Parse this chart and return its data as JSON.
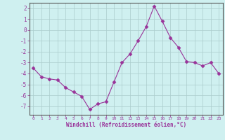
{
  "x": [
    0,
    1,
    2,
    3,
    4,
    5,
    6,
    7,
    8,
    9,
    10,
    11,
    12,
    13,
    14,
    15,
    16,
    17,
    18,
    19,
    20,
    21,
    22,
    23
  ],
  "y": [
    -3.5,
    -4.3,
    -4.5,
    -4.6,
    -5.3,
    -5.7,
    -6.1,
    -7.3,
    -6.8,
    -6.6,
    -4.8,
    -3.0,
    -2.2,
    -1.0,
    0.3,
    2.2,
    0.8,
    -0.7,
    -1.6,
    -2.9,
    -3.0,
    -3.3,
    -3.0,
    -4.0
  ],
  "line_color": "#993399",
  "marker": "D",
  "marker_size": 2.5,
  "background_color": "#cff0f0",
  "grid_color": "#aacccc",
  "xlabel": "Windchill (Refroidissement éolien,°C)",
  "xlabel_color": "#993399",
  "tick_color": "#993399",
  "ylim": [
    -7.8,
    2.5
  ],
  "yticks": [
    -7,
    -6,
    -5,
    -4,
    -3,
    -2,
    -1,
    0,
    1,
    2
  ],
  "xticks": [
    0,
    1,
    2,
    3,
    4,
    5,
    6,
    7,
    8,
    9,
    10,
    11,
    12,
    13,
    14,
    15,
    16,
    17,
    18,
    19,
    20,
    21,
    22,
    23
  ]
}
